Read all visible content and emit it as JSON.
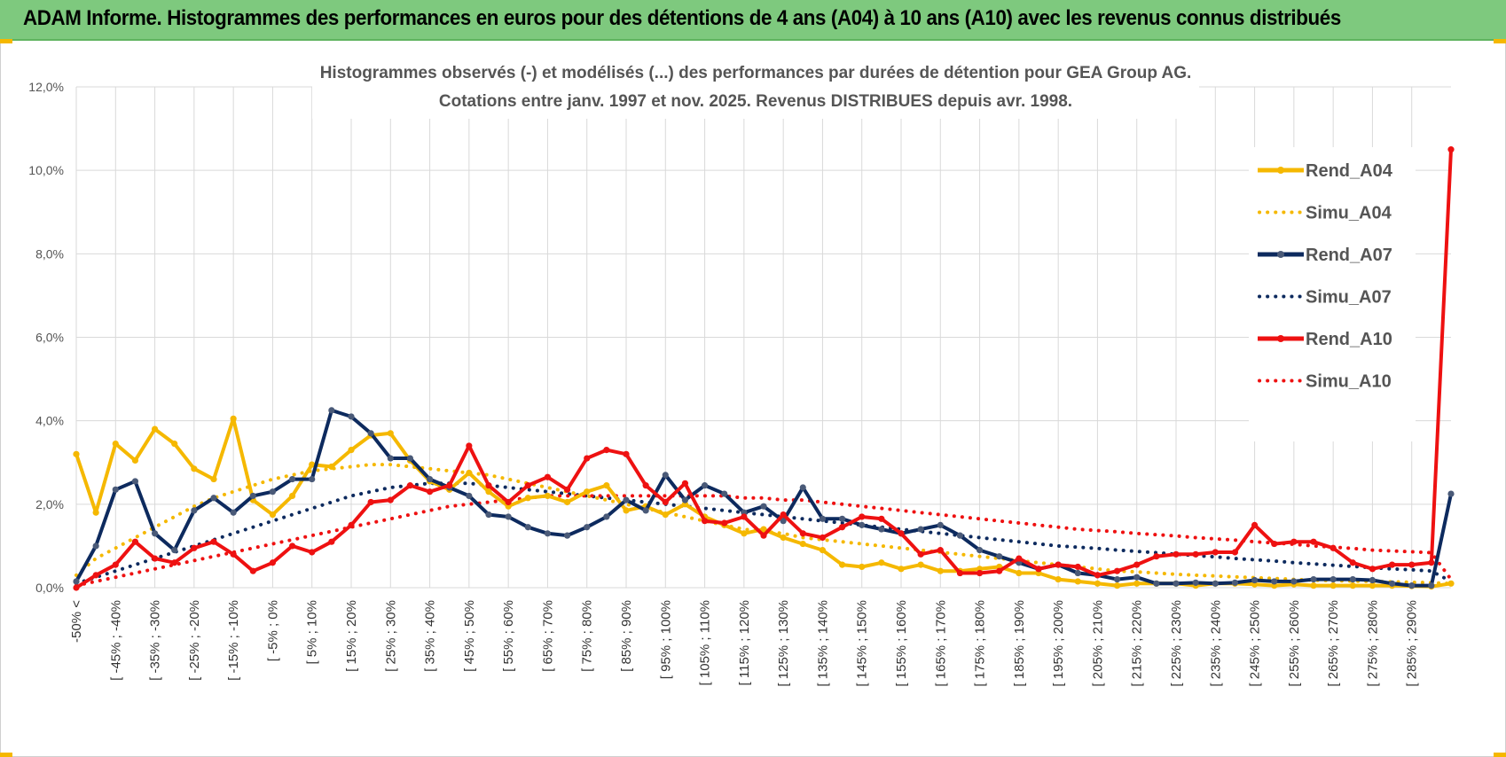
{
  "banner": {
    "title": "ADAM Informe. Histogrammes des performances en euros pour des détentions de 4 ans (A04) à 10 ans (A10) avec les revenus connus distribués"
  },
  "chart_data": {
    "type": "line",
    "title_line1": "Histogrammes observés (-) et modélisés (...) des performances par durées de détention pour GEA Group AG.",
    "title_line2": "Cotations entre janv. 1997 et nov. 2025. Revenus DISTRIBUES depuis avr. 1998.",
    "ylim": [
      0,
      12
    ],
    "yticks": [
      "0,0%",
      "2,0%",
      "4,0%",
      "6,0%",
      "8,0%",
      "10,0%",
      "12,0%"
    ],
    "x_tick_labels": [
      "-50% <",
      "[ -45% ; -40%",
      "[ -35% ; -30%",
      "[ -25% ; -20%",
      "[ -15% ; -10%",
      "[ -5% ; 0%",
      "[ 5% ; 10%",
      "[ 15% ; 20%",
      "[ 25% ; 30%",
      "[ 35% ; 40%",
      "[ 45% ; 50%",
      "[ 55% ; 60%",
      "[ 65% ; 70%",
      "[ 75% ; 80%",
      "[ 85% ; 90%",
      "[ 95% ; 100%",
      "[ 105% ; 110%",
      "[ 115% ; 120%",
      "[ 125% ; 130%",
      "[ 135% ; 140%",
      "[ 145% ; 150%",
      "[ 155% ; 160%",
      "[ 165% ; 170%",
      "[ 175% ; 180%",
      "[ 185% ; 190%",
      "[ 195% ; 200%",
      "[ 205% ; 210%",
      "[ 215% ; 220%",
      "[ 225% ; 230%",
      "[ 235% ; 240%",
      "[ 245% ; 250%",
      "[ 255% ; 260%",
      "[ 265% ; 270%",
      "[ 275% ; 280%",
      "[ 285% ; 290%"
    ],
    "n_categories": 71,
    "series": [
      {
        "name": "Rend_A04",
        "style": "solid",
        "markers": true,
        "color": "#f5b800",
        "values": [
          3.2,
          1.8,
          3.45,
          3.05,
          3.8,
          3.45,
          2.85,
          2.6,
          4.05,
          2.1,
          1.75,
          2.2,
          2.95,
          2.9,
          3.3,
          3.65,
          3.7,
          3.05,
          2.55,
          2.35,
          2.75,
          2.3,
          1.95,
          2.15,
          2.2,
          2.05,
          2.3,
          2.45,
          1.85,
          1.95,
          1.75,
          2.0,
          1.7,
          1.5,
          1.3,
          1.4,
          1.2,
          1.05,
          0.9,
          0.55,
          0.5,
          0.6,
          0.45,
          0.55,
          0.4,
          0.4,
          0.45,
          0.5,
          0.35,
          0.35,
          0.2,
          0.15,
          0.1,
          0.05,
          0.1,
          0.1,
          0.1,
          0.05,
          0.1,
          0.1,
          0.08,
          0.05,
          0.08,
          0.05,
          0.05,
          0.05,
          0.05,
          0.05,
          0.04,
          0.03,
          0.1
        ]
      },
      {
        "name": "Simu_A04",
        "style": "dotted",
        "markers": false,
        "color": "#f5b800",
        "values": [
          0.3,
          0.7,
          0.95,
          1.2,
          1.45,
          1.7,
          1.95,
          2.15,
          2.3,
          2.45,
          2.6,
          2.7,
          2.8,
          2.85,
          2.9,
          2.95,
          2.95,
          2.9,
          2.85,
          2.8,
          2.75,
          2.7,
          2.6,
          2.5,
          2.4,
          2.3,
          2.2,
          2.1,
          2.0,
          1.9,
          1.8,
          1.7,
          1.6,
          1.5,
          1.4,
          1.35,
          1.3,
          1.2,
          1.15,
          1.1,
          1.05,
          1.0,
          0.95,
          0.9,
          0.85,
          0.8,
          0.75,
          0.7,
          0.65,
          0.6,
          0.55,
          0.5,
          0.45,
          0.4,
          0.38,
          0.35,
          0.32,
          0.3,
          0.28,
          0.26,
          0.24,
          0.22,
          0.2,
          0.18,
          0.17,
          0.16,
          0.15,
          0.14,
          0.13,
          0.12,
          0.1
        ]
      },
      {
        "name": "Rend_A07",
        "style": "solid",
        "markers": true,
        "color": "#0d2a5e",
        "values": [
          0.15,
          1.0,
          2.35,
          2.55,
          1.3,
          0.9,
          1.85,
          2.15,
          1.8,
          2.2,
          2.3,
          2.6,
          2.6,
          4.25,
          4.1,
          3.7,
          3.1,
          3.1,
          2.6,
          2.4,
          2.2,
          1.75,
          1.7,
          1.45,
          1.3,
          1.25,
          1.45,
          1.7,
          2.1,
          1.85,
          2.7,
          2.1,
          2.45,
          2.25,
          1.8,
          1.95,
          1.6,
          2.4,
          1.65,
          1.65,
          1.5,
          1.4,
          1.3,
          1.4,
          1.5,
          1.25,
          0.9,
          0.75,
          0.6,
          0.45,
          0.55,
          0.35,
          0.3,
          0.2,
          0.25,
          0.1,
          0.1,
          0.12,
          0.1,
          0.12,
          0.18,
          0.15,
          0.15,
          0.2,
          0.2,
          0.2,
          0.18,
          0.1,
          0.05,
          0.05,
          2.25
        ]
      },
      {
        "name": "Simu_A07",
        "style": "dotted",
        "markers": false,
        "color": "#0d2a5e",
        "values": [
          0.1,
          0.25,
          0.4,
          0.55,
          0.7,
          0.85,
          1.0,
          1.15,
          1.3,
          1.45,
          1.6,
          1.75,
          1.9,
          2.05,
          2.2,
          2.3,
          2.4,
          2.45,
          2.5,
          2.5,
          2.5,
          2.45,
          2.4,
          2.35,
          2.3,
          2.25,
          2.2,
          2.15,
          2.1,
          2.05,
          2.0,
          1.95,
          1.9,
          1.85,
          1.8,
          1.75,
          1.7,
          1.65,
          1.6,
          1.55,
          1.5,
          1.45,
          1.4,
          1.35,
          1.3,
          1.25,
          1.2,
          1.15,
          1.1,
          1.05,
          1.0,
          0.97,
          0.94,
          0.9,
          0.87,
          0.84,
          0.8,
          0.77,
          0.74,
          0.7,
          0.67,
          0.64,
          0.6,
          0.57,
          0.54,
          0.51,
          0.48,
          0.45,
          0.43,
          0.4,
          0.15
        ]
      },
      {
        "name": "Rend_A10",
        "style": "solid",
        "markers": true,
        "color": "#ee1111",
        "values": [
          0.0,
          0.3,
          0.55,
          1.1,
          0.7,
          0.6,
          0.95,
          1.1,
          0.8,
          0.4,
          0.6,
          1.0,
          0.85,
          1.1,
          1.5,
          2.05,
          2.1,
          2.45,
          2.3,
          2.45,
          3.4,
          2.45,
          2.05,
          2.45,
          2.65,
          2.35,
          3.1,
          3.3,
          3.2,
          2.45,
          2.05,
          2.5,
          1.6,
          1.55,
          1.7,
          1.25,
          1.75,
          1.3,
          1.2,
          1.45,
          1.7,
          1.65,
          1.3,
          0.8,
          0.9,
          0.35,
          0.35,
          0.4,
          0.7,
          0.45,
          0.55,
          0.5,
          0.3,
          0.4,
          0.55,
          0.75,
          0.8,
          0.8,
          0.85,
          0.85,
          1.5,
          1.05,
          1.1,
          1.1,
          0.95,
          0.6,
          0.45,
          0.55,
          0.55,
          0.6,
          10.5
        ]
      },
      {
        "name": "Simu_A10",
        "style": "dotted",
        "markers": false,
        "color": "#ee1111",
        "values": [
          0.05,
          0.15,
          0.25,
          0.35,
          0.45,
          0.55,
          0.65,
          0.75,
          0.85,
          0.95,
          1.05,
          1.15,
          1.25,
          1.35,
          1.45,
          1.55,
          1.65,
          1.75,
          1.85,
          1.95,
          2.0,
          2.05,
          2.1,
          2.15,
          2.2,
          2.2,
          2.2,
          2.2,
          2.2,
          2.2,
          2.2,
          2.2,
          2.2,
          2.2,
          2.15,
          2.15,
          2.1,
          2.1,
          2.05,
          2.0,
          1.95,
          1.9,
          1.85,
          1.8,
          1.75,
          1.7,
          1.65,
          1.6,
          1.55,
          1.5,
          1.45,
          1.4,
          1.37,
          1.34,
          1.3,
          1.27,
          1.24,
          1.2,
          1.17,
          1.14,
          1.1,
          1.07,
          1.04,
          1.0,
          0.97,
          0.94,
          0.9,
          0.88,
          0.86,
          0.84,
          0.2
        ]
      }
    ],
    "legend_position": "top-right"
  }
}
